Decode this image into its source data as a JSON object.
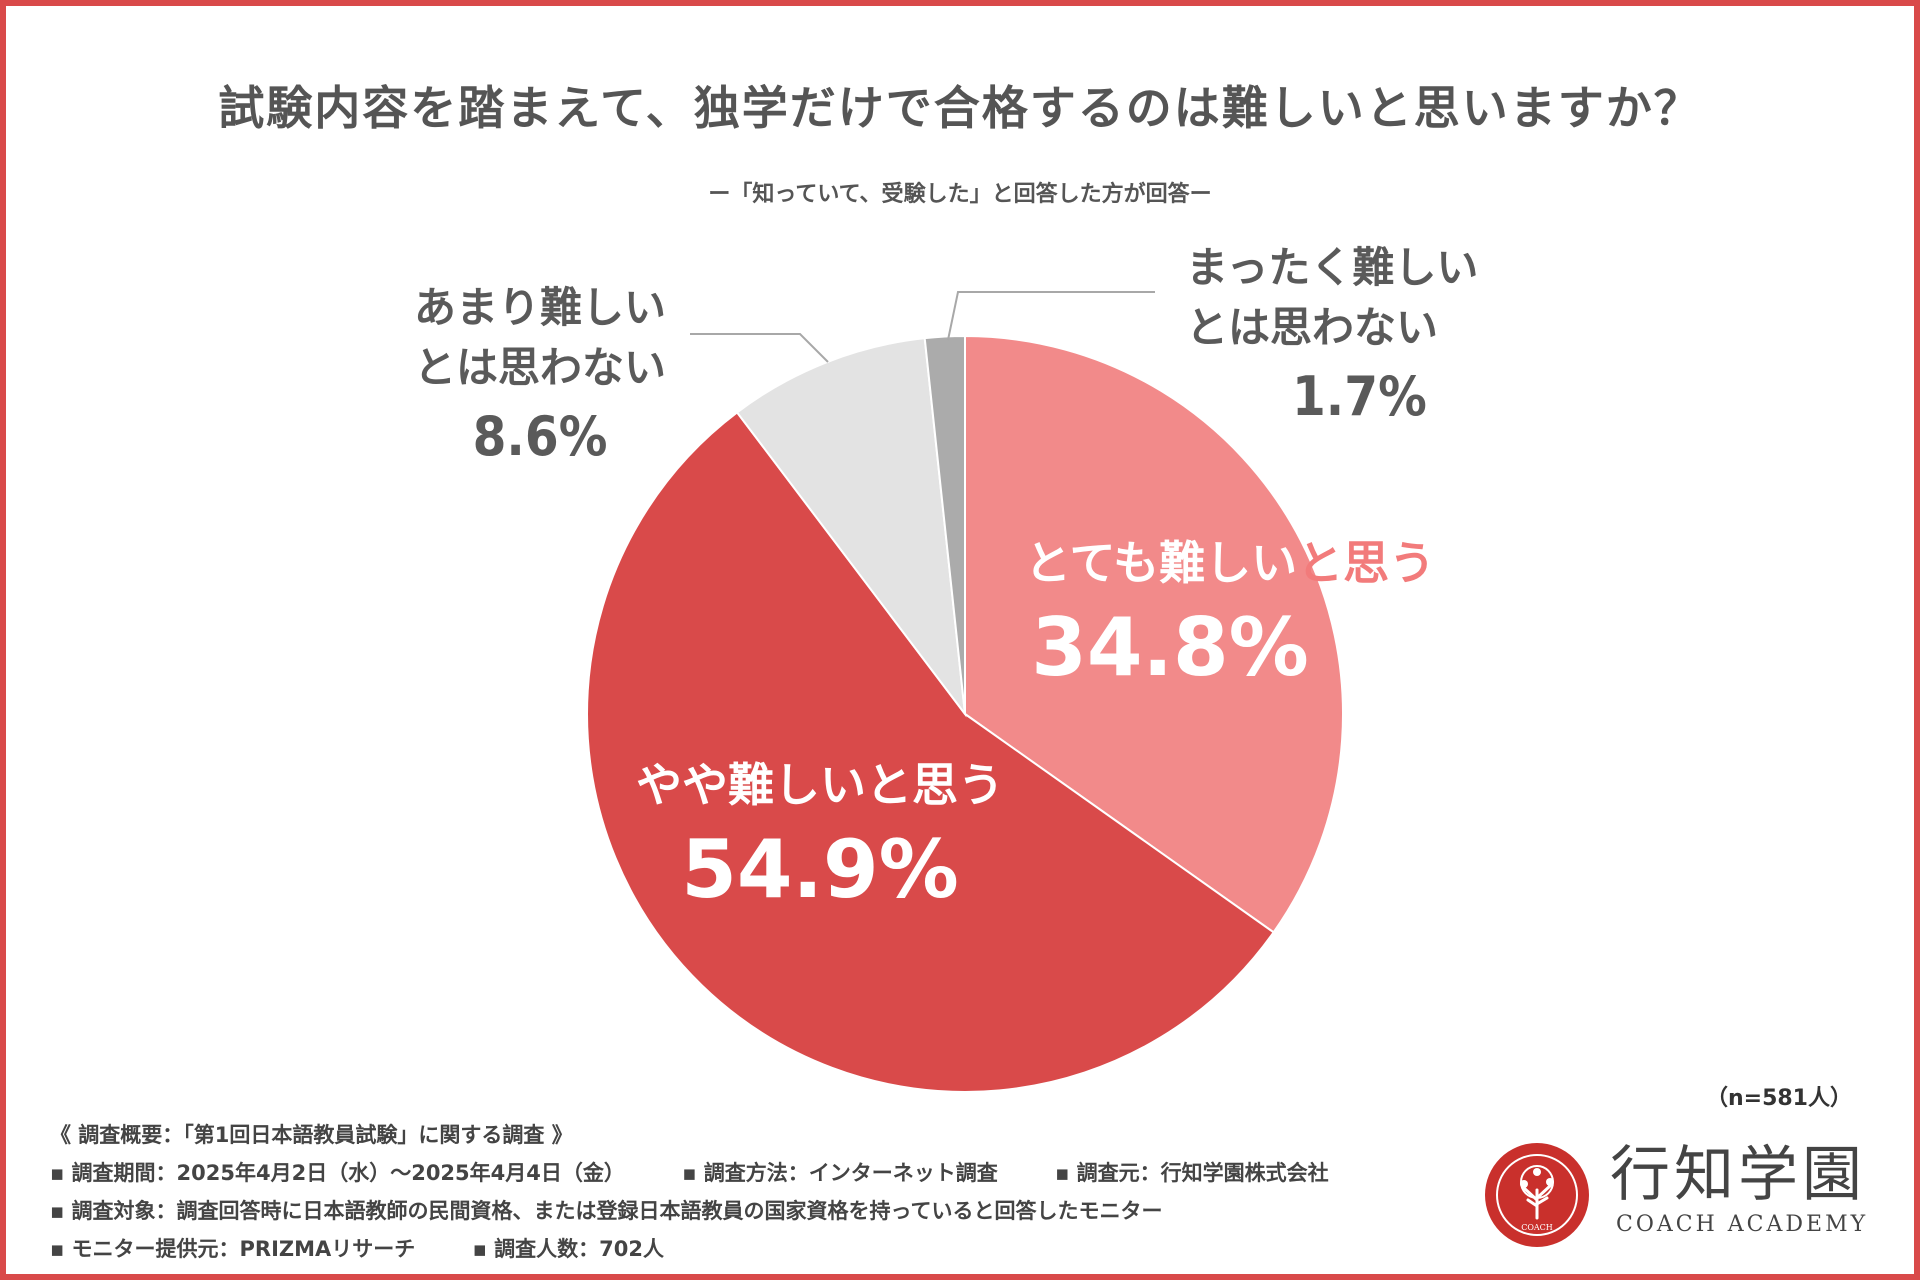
{
  "chart_data": {
    "type": "pie",
    "title": "試験内容を踏まえて、独学だけで合格するのは難しいと思いますか？",
    "subtitle": "ー「知っていて、受験した」と回答した方が回答ー",
    "start_angle_deg": 0,
    "direction": "clockwise",
    "slices": [
      {
        "label": "とても難しいと思う",
        "value": 34.8,
        "value_label": "34.8%",
        "color": "#f28a8a"
      },
      {
        "label": "やや難しいと思う",
        "value": 54.9,
        "value_label": "54.9%",
        "color": "#d94a4a"
      },
      {
        "label": "あまり難しいとは思わない",
        "value": 8.6,
        "value_label": "8.6%",
        "color": "#e3e3e3"
      },
      {
        "label": "まったく難しいとは思わない",
        "value": 1.7,
        "value_label": "1.7%",
        "color": "#ababab"
      }
    ],
    "label_lines": {
      "very_difficult": [
        "とても難しい",
        "と思う"
      ],
      "somewhat_difficult": "やや難しいと思う",
      "not_very": [
        "あまり難しい",
        "とは思わない"
      ],
      "not_at_all": [
        "まったく難しい",
        "とは思わない"
      ]
    },
    "sample_note": "（n=581人）"
  },
  "survey": {
    "heading": "《 調査概要：「第1回日本語教員試験」に関する調査 》",
    "period": "▪ 調査期間：2025年4月2日（水）～2025年4月4日（金）",
    "method": "▪ 調査方法：インターネット調査",
    "source": "▪ 調査元：行知学園株式会社",
    "target": "▪ 調査対象：調査回答時に日本語教師の民間資格、または登録日本語教員の国家資格を持っていると回答したモニター",
    "provider": "▪ モニター提供元：PRIZMAリサーチ",
    "respondents": "▪ 調査人数：702人"
  },
  "logo": {
    "name": "行知学園",
    "english": "COACH ACADEMY",
    "seal_text": "COACH"
  },
  "colors": {
    "accent": "#d94a4a",
    "pink": "#f28a8a",
    "light_gray": "#e3e3e3",
    "gray": "#ababab",
    "text": "#555555"
  }
}
